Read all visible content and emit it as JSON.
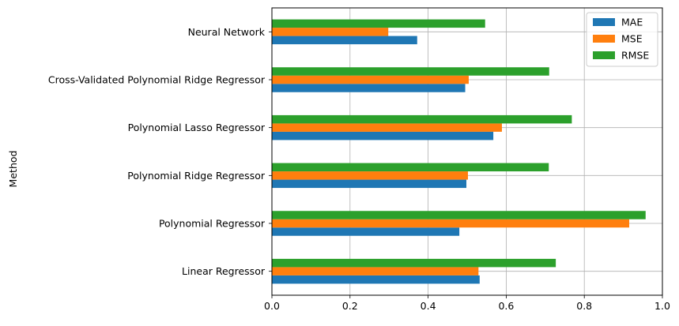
{
  "chart_data": {
    "type": "bar",
    "orientation": "horizontal",
    "title": "",
    "xlabel": "",
    "ylabel": "Method",
    "xlim": [
      0.0,
      1.0
    ],
    "xticks": [
      0.0,
      0.2,
      0.4,
      0.6,
      0.8,
      1.0
    ],
    "xtick_labels": [
      "0.0",
      "0.2",
      "0.4",
      "0.6",
      "0.8",
      "1.0"
    ],
    "grid": true,
    "legend_position": "top-right",
    "categories": [
      "Linear Regressor",
      "Polynomial Regressor",
      "Polynomial Ridge Regressor",
      "Polynomial Lasso Regressor",
      "Cross-Validated Polynomial Ridge Regressor",
      "Neural Network"
    ],
    "series": [
      {
        "name": "MAE",
        "color": "#1f77b4",
        "values": [
          0.532,
          0.48,
          0.498,
          0.567,
          0.495,
          0.372
        ]
      },
      {
        "name": "MSE",
        "color": "#ff7f0e",
        "values": [
          0.529,
          0.915,
          0.502,
          0.589,
          0.504,
          0.298
        ]
      },
      {
        "name": "RMSE",
        "color": "#2ca02c",
        "values": [
          0.727,
          0.957,
          0.709,
          0.768,
          0.71,
          0.546
        ]
      }
    ]
  }
}
